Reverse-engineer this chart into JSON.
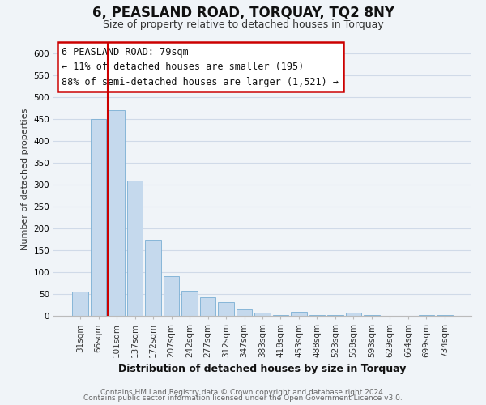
{
  "title": "6, PEASLAND ROAD, TORQUAY, TQ2 8NY",
  "subtitle": "Size of property relative to detached houses in Torquay",
  "xlabel": "Distribution of detached houses by size in Torquay",
  "ylabel": "Number of detached properties",
  "bar_labels": [
    "31sqm",
    "66sqm",
    "101sqm",
    "137sqm",
    "172sqm",
    "207sqm",
    "242sqm",
    "277sqm",
    "312sqm",
    "347sqm",
    "383sqm",
    "418sqm",
    "453sqm",
    "488sqm",
    "523sqm",
    "558sqm",
    "593sqm",
    "629sqm",
    "664sqm",
    "699sqm",
    "734sqm"
  ],
  "bar_heights": [
    55,
    450,
    470,
    310,
    175,
    90,
    58,
    42,
    32,
    15,
    7,
    1,
    9,
    2,
    1,
    8,
    1,
    0,
    0,
    2,
    1
  ],
  "bar_color": "#c5d9ed",
  "bar_edge_color": "#7aafd4",
  "ylim": [
    0,
    625
  ],
  "yticks": [
    0,
    50,
    100,
    150,
    200,
    250,
    300,
    350,
    400,
    450,
    500,
    550,
    600
  ],
  "annotation_title": "6 PEASLAND ROAD: 79sqm",
  "annotation_line1": "← 11% of detached houses are smaller (195)",
  "annotation_line2": "88% of semi-detached houses are larger (1,521) →",
  "annotation_box_facecolor": "#ffffff",
  "annotation_box_edgecolor": "#cc0000",
  "red_line_x": 1.5,
  "footer_line1": "Contains HM Land Registry data © Crown copyright and database right 2024.",
  "footer_line2": "Contains public sector information licensed under the Open Government Licence v3.0.",
  "background_color": "#f0f4f8",
  "grid_color": "#d0dae8",
  "title_fontsize": 12,
  "subtitle_fontsize": 9,
  "ylabel_fontsize": 8,
  "xlabel_fontsize": 9,
  "tick_fontsize": 7.5,
  "footer_fontsize": 6.5,
  "ann_fontsize": 8.5
}
